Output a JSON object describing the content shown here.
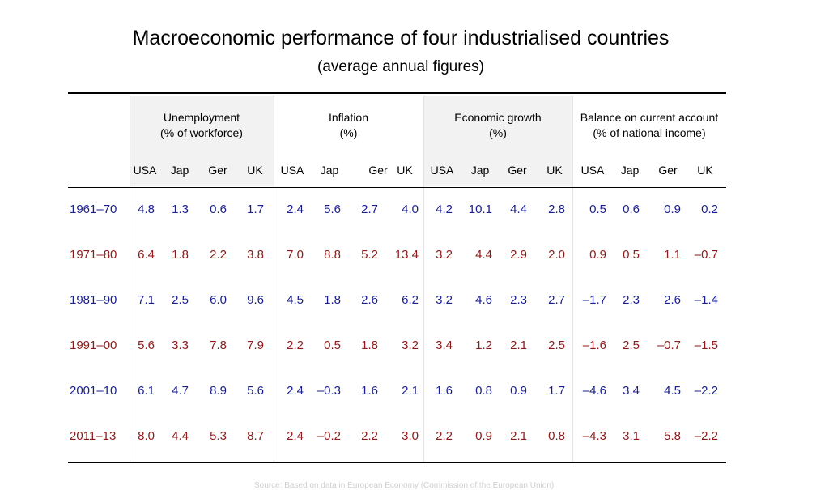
{
  "title": "Macroeconomic performance of four industrialised countries",
  "subtitle": "(average annual figures)",
  "groups": [
    {
      "line1": "Unemployment",
      "line2": "(% of workforce)"
    },
    {
      "line1": "Inflation",
      "line2": "(%)"
    },
    {
      "line1": "Economic growth",
      "line2": "(%)"
    },
    {
      "line1": "Balance on current account",
      "line2": "(% of national income)"
    }
  ],
  "countries": [
    "USA",
    "Jap",
    "Ger",
    "UK"
  ],
  "rows": [
    {
      "period": "1961–70",
      "color": "#1a1f8f",
      "values": [
        "4.8",
        "1.3",
        "0.6",
        "1.7",
        "2.4",
        "5.6",
        "2.7",
        "4.0",
        "4.2",
        "10.1",
        "4.4",
        "2.8",
        "0.5",
        "0.6",
        "0.9",
        "0.2"
      ]
    },
    {
      "period": "1971–80",
      "color": "#8b1a1a",
      "values": [
        "6.4",
        "1.8",
        "2.2",
        "3.8",
        "7.0",
        "8.8",
        "5.2",
        "13.4",
        "3.2",
        "4.4",
        "2.9",
        "2.0",
        "0.9",
        "0.5",
        "1.1",
        "–0.7"
      ]
    },
    {
      "period": "1981–90",
      "color": "#1a1f8f",
      "values": [
        "7.1",
        "2.5",
        "6.0",
        "9.6",
        "4.5",
        "1.8",
        "2.6",
        "6.2",
        "3.2",
        "4.6",
        "2.3",
        "2.7",
        "–1.7",
        "2.3",
        "2.6",
        "–1.4"
      ]
    },
    {
      "period": "1991–00",
      "color": "#8b1a1a",
      "values": [
        "5.6",
        "3.3",
        "7.8",
        "7.9",
        "2.2",
        "0.5",
        "1.8",
        "3.2",
        "3.4",
        "1.2",
        "2.1",
        "2.5",
        "–1.6",
        "2.5",
        "–0.7",
        "–1.5"
      ]
    },
    {
      "period": "2001–10",
      "color": "#1a1f8f",
      "values": [
        "6.1",
        "4.7",
        "8.9",
        "5.6",
        "2.4",
        "–0.3",
        "1.6",
        "2.1",
        "1.6",
        "0.8",
        "0.9",
        "1.7",
        "–4.6",
        "3.4",
        "4.5",
        "–2.2"
      ]
    },
    {
      "period": "2011–13",
      "color": "#8b1a1a",
      "values": [
        "8.0",
        "4.4",
        "5.3",
        "8.7",
        "2.4",
        "–0.2",
        "2.2",
        "3.0",
        "2.2",
        "0.9",
        "2.1",
        "0.8",
        "–4.3",
        "3.1",
        "5.8",
        "–2.2"
      ]
    }
  ],
  "source": "Source: Based on data in European Economy (Commission of the European Union)"
}
